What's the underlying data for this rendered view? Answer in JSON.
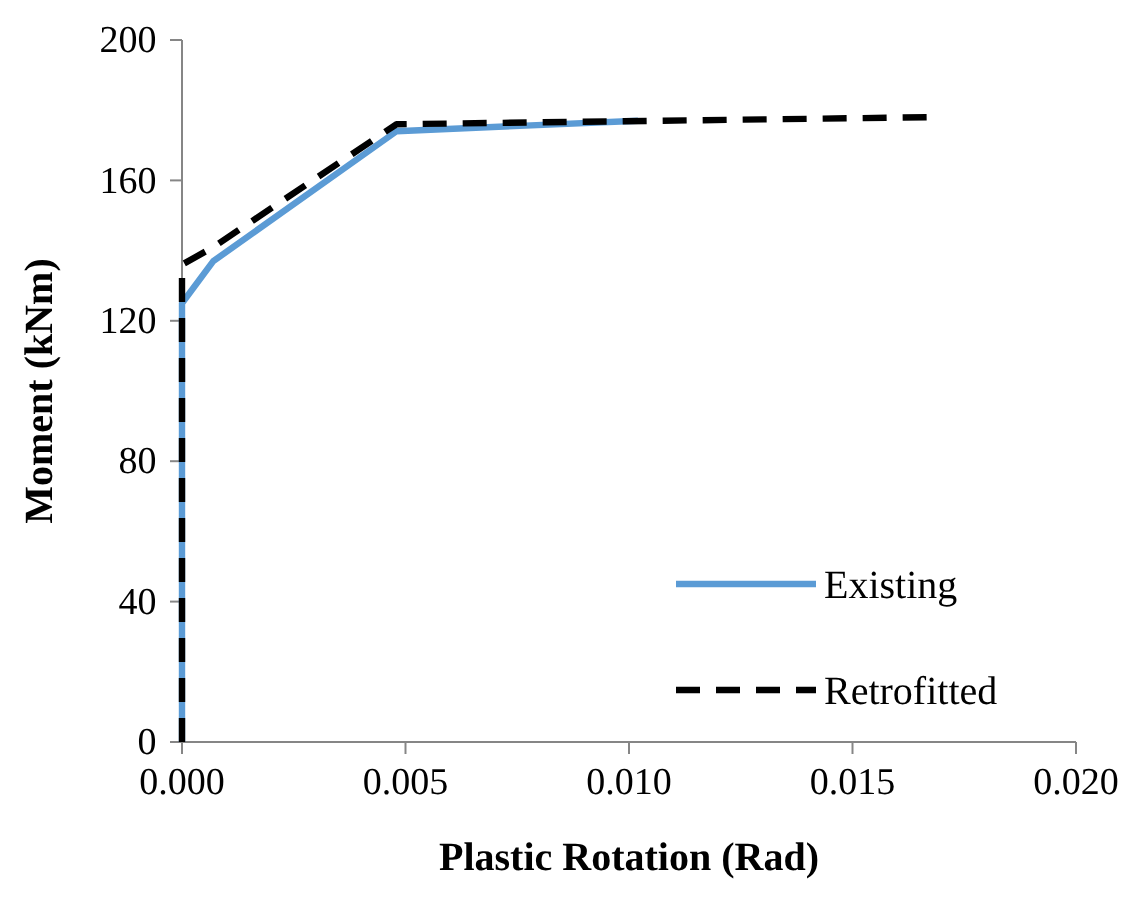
{
  "chart_data": {
    "type": "line",
    "xlabel": "Plastic Rotation (Rad)",
    "ylabel": "Moment (kNm)",
    "xlim": [
      0,
      0.02
    ],
    "xticks": [
      {
        "value": 0,
        "label": "0.000"
      },
      {
        "value": 0.005,
        "label": "0.005"
      },
      {
        "value": 0.01,
        "label": "0.010"
      },
      {
        "value": 0.015,
        "label": "0.015"
      },
      {
        "value": 0.02,
        "label": "0.020"
      }
    ],
    "ylim": [
      0,
      200
    ],
    "yticks": [
      0,
      40,
      80,
      120,
      160,
      200
    ],
    "legend": "bottom right",
    "grid": false,
    "marker": "none",
    "series": [
      {
        "name": "Existing",
        "color": "#5b9bd5",
        "line_style": "solid",
        "x": [
          0,
          0,
          0.0007,
          0.0048,
          0.0102
        ],
        "values": [
          0,
          125,
          137,
          174,
          177
        ]
      },
      {
        "name": "Retrofitted",
        "color": "#000000",
        "line_style": "dashed",
        "x": [
          0,
          0,
          0.0007,
          0.0048,
          0.0167
        ],
        "values": [
          0,
          136,
          141,
          176,
          178
        ]
      }
    ]
  }
}
